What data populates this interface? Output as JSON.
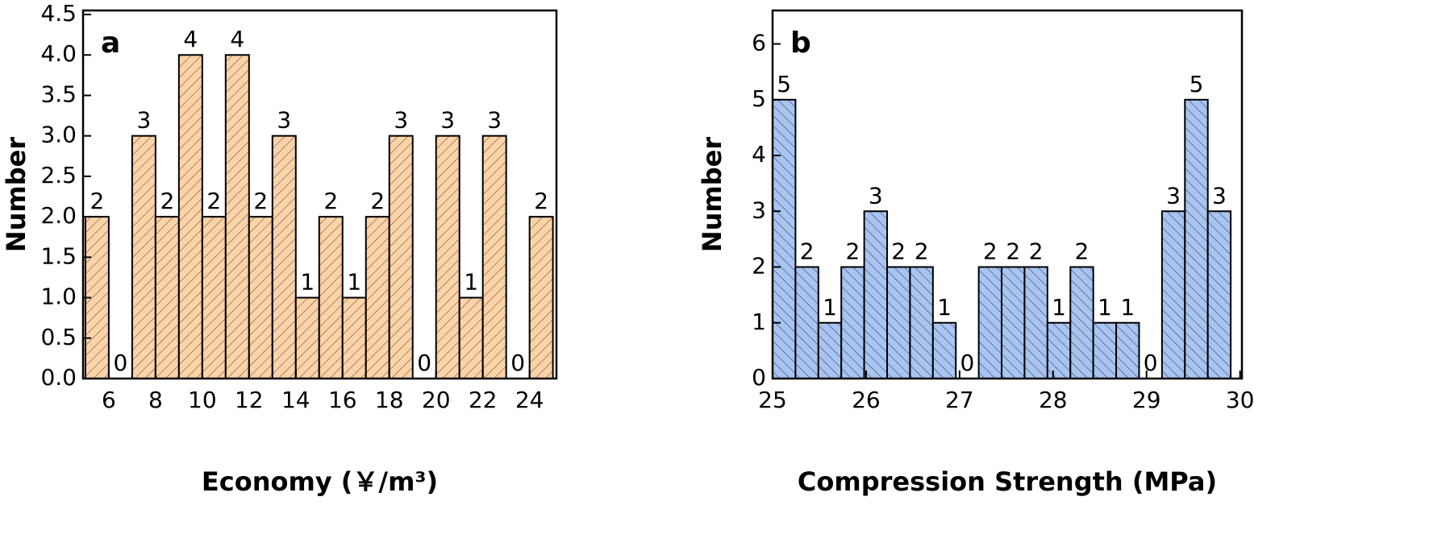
{
  "chart_data": [
    {
      "type": "histogram",
      "panel_label": "a",
      "xlabel": "Economy (￥/m³)",
      "ylabel": "Number",
      "bins": [
        5,
        6,
        7,
        8,
        9,
        10,
        11,
        12,
        13,
        14,
        15,
        16,
        17,
        18,
        19,
        20,
        21,
        22,
        23,
        24,
        25
      ],
      "values": [
        2,
        0,
        3,
        2,
        4,
        2,
        4,
        2,
        3,
        1,
        2,
        1,
        2,
        3,
        0,
        3,
        1,
        3,
        0,
        2
      ],
      "color": "#fbd3a9",
      "hatch_color": "#8a5a3a",
      "xlim": [
        4.9,
        25.15
      ],
      "xticks": [
        6,
        8,
        10,
        12,
        14,
        16,
        18,
        20,
        22,
        24
      ],
      "ylim": [
        0,
        4.55
      ],
      "yticks": [
        {
          "value": 0,
          "label": "0.0"
        },
        0.5,
        {
          "value": 1,
          "label": "1.0"
        },
        1.5,
        {
          "value": 2,
          "label": "2.0"
        },
        2.5,
        {
          "value": 3,
          "label": "3.0"
        },
        3.5,
        {
          "value": 4,
          "label": "4.0"
        },
        4.5
      ]
    },
    {
      "type": "histogram",
      "panel_label": "b",
      "xlabel": "Compression Strength (MPa)",
      "ylabel": "Number",
      "bins": [
        25.0,
        25.245,
        25.49,
        25.735,
        25.98,
        26.225,
        26.47,
        26.715,
        26.96,
        27.205,
        27.45,
        27.695,
        27.94,
        28.185,
        28.43,
        28.675,
        28.92,
        29.165,
        29.41,
        29.655,
        29.9
      ],
      "values": [
        5,
        2,
        1,
        2,
        3,
        2,
        2,
        1,
        0,
        2,
        2,
        2,
        1,
        2,
        1,
        1,
        0,
        3,
        5,
        3
      ],
      "color": "#aac4f0",
      "hatch_color": "#3a4f80",
      "xlim": [
        25,
        30.02
      ],
      "xticks": [
        25,
        26,
        27,
        28,
        29,
        30
      ],
      "ylim": [
        0,
        6.6
      ],
      "yticks": [
        0,
        1,
        2,
        3,
        4,
        5,
        6
      ]
    }
  ]
}
